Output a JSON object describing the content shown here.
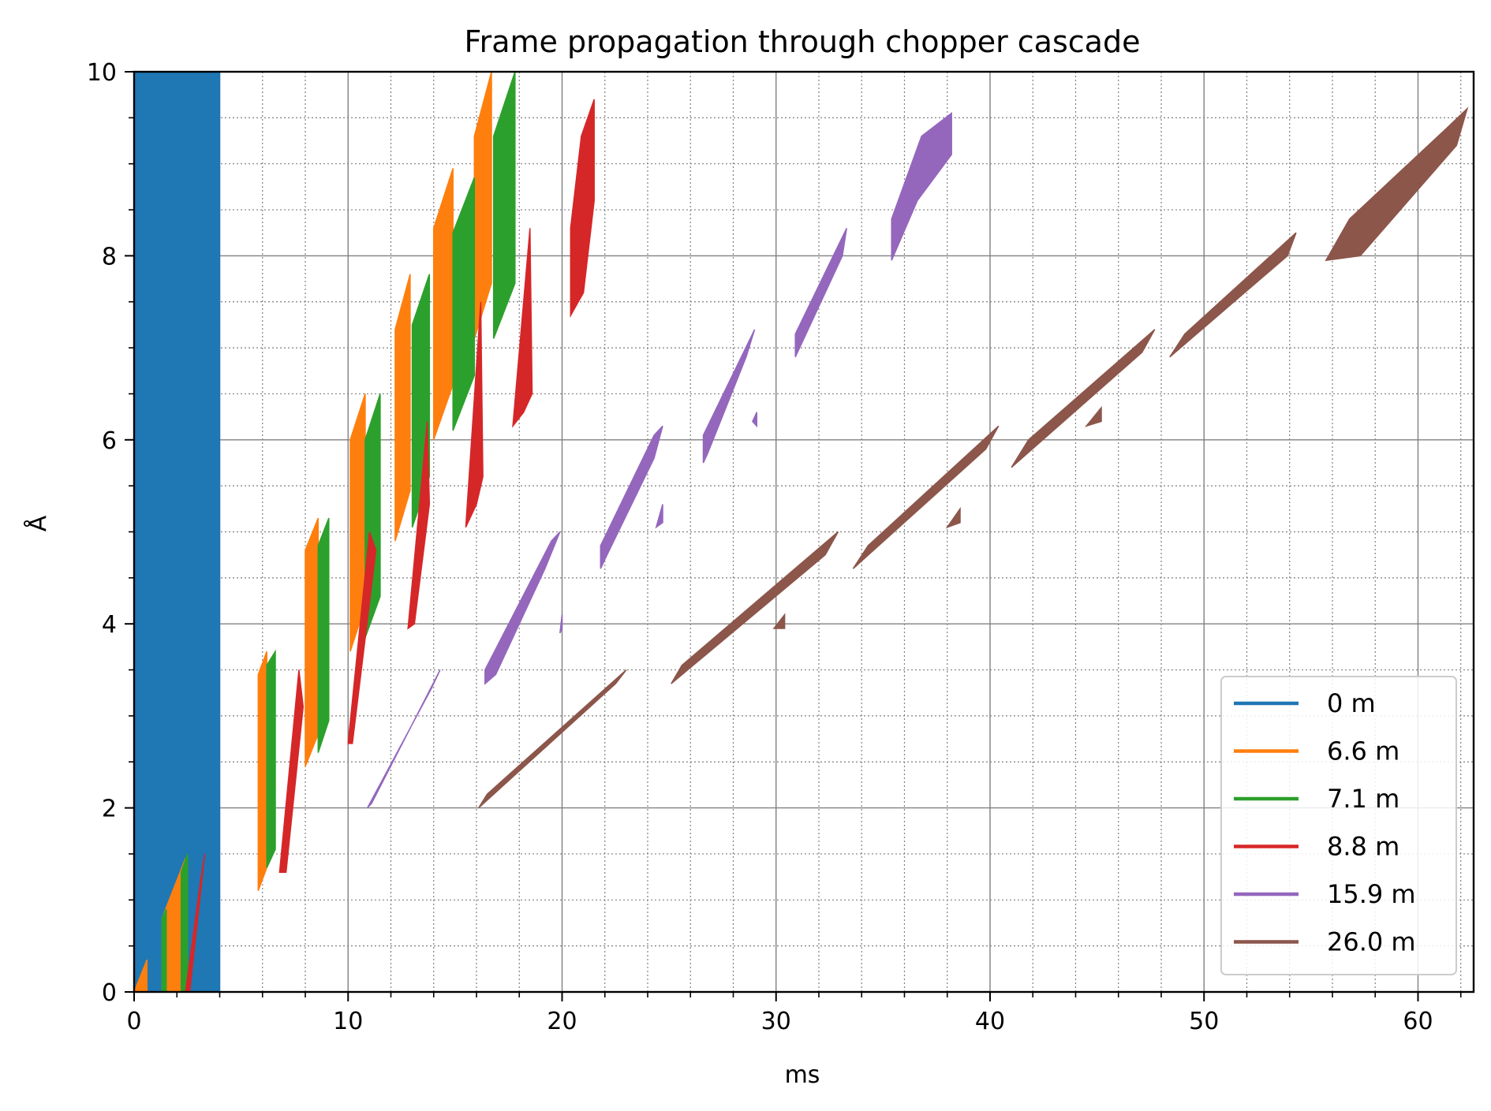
{
  "chart_data": {
    "type": "area",
    "title": "Frame propagation through chopper cascade",
    "xlabel": "ms",
    "ylabel": "Å",
    "xlim": [
      0,
      62.6
    ],
    "ylim": [
      0,
      10
    ],
    "xticks": [
      "0",
      "10",
      "20",
      "30",
      "40",
      "50",
      "60"
    ],
    "yticks": [
      "0",
      "2",
      "4",
      "6",
      "8",
      "10"
    ],
    "grid": {
      "major": true,
      "minor": true
    },
    "legend_position": "lower-right",
    "series": [
      {
        "name": "0 m",
        "color": "#1f77b4",
        "polygons": [
          [
            [
              0,
              0
            ],
            [
              4,
              0
            ],
            [
              4,
              10
            ],
            [
              0,
              10
            ]
          ]
        ]
      },
      {
        "name": "6.6 m",
        "color": "#ff7f0e",
        "polygons": [
          [
            [
              0,
              0
            ],
            [
              0.6,
              0.35
            ],
            [
              0.6,
              0
            ],
            [
              0,
              0
            ]
          ],
          [
            [
              1.3,
              0
            ],
            [
              1.3,
              0.8
            ],
            [
              2.4,
              1.45
            ],
            [
              2.4,
              0
            ]
          ],
          [
            [
              5.8,
              1.1
            ],
            [
              5.8,
              3.45
            ],
            [
              6.2,
              3.7
            ],
            [
              6.2,
              1.35
            ]
          ],
          [
            [
              8.0,
              2.45
            ],
            [
              8.0,
              4.8
            ],
            [
              8.6,
              5.15
            ],
            [
              8.6,
              2.8
            ]
          ],
          [
            [
              10.1,
              3.7
            ],
            [
              10.1,
              6.0
            ],
            [
              10.8,
              6.5
            ],
            [
              10.8,
              4.2
            ]
          ],
          [
            [
              12.2,
              4.9
            ],
            [
              12.2,
              7.2
            ],
            [
              12.9,
              7.8
            ],
            [
              12.9,
              5.45
            ]
          ],
          [
            [
              14.0,
              6.0
            ],
            [
              14.0,
              8.3
            ],
            [
              14.9,
              8.95
            ],
            [
              14.9,
              6.6
            ]
          ],
          [
            [
              15.9,
              7.1
            ],
            [
              15.9,
              9.3
            ],
            [
              16.7,
              10
            ],
            [
              16.7,
              7.7
            ]
          ]
        ]
      },
      {
        "name": "7.1 m",
        "color": "#2ca02c",
        "polygons": [
          [
            [
              1.3,
              0
            ],
            [
              1.3,
              0.8
            ],
            [
              1.5,
              0.9
            ],
            [
              1.5,
              0
            ]
          ],
          [
            [
              2.2,
              0
            ],
            [
              2.2,
              1.3
            ],
            [
              2.5,
              1.5
            ],
            [
              2.5,
              0
            ]
          ],
          [
            [
              6.2,
              1.35
            ],
            [
              6.2,
              3.55
            ],
            [
              6.6,
              3.7
            ],
            [
              6.6,
              1.55
            ]
          ],
          [
            [
              8.6,
              2.6
            ],
            [
              8.6,
              4.85
            ],
            [
              9.1,
              5.15
            ],
            [
              9.1,
              2.95
            ]
          ],
          [
            [
              10.8,
              3.85
            ],
            [
              10.8,
              6.0
            ],
            [
              11.5,
              6.5
            ],
            [
              11.5,
              4.3
            ]
          ],
          [
            [
              13.0,
              5.05
            ],
            [
              13.0,
              7.25
            ],
            [
              13.8,
              7.8
            ],
            [
              13.8,
              5.6
            ]
          ],
          [
            [
              14.9,
              6.1
            ],
            [
              14.9,
              8.25
            ],
            [
              15.9,
              8.85
            ],
            [
              15.9,
              6.7
            ]
          ],
          [
            [
              16.8,
              7.1
            ],
            [
              16.8,
              9.3
            ],
            [
              17.8,
              10
            ],
            [
              17.8,
              7.7
            ]
          ]
        ]
      },
      {
        "name": "8.8 m",
        "color": "#d62728",
        "polygons": [
          [
            [
              2.4,
              0
            ],
            [
              2.6,
              0
            ],
            [
              3.3,
              1.5
            ],
            [
              3.1,
              1.2
            ]
          ],
          [
            [
              6.8,
              1.3
            ],
            [
              7.7,
              3.5
            ],
            [
              7.9,
              3.1
            ],
            [
              7.1,
              1.3
            ]
          ],
          [
            [
              10.0,
              2.7
            ],
            [
              11.0,
              5.0
            ],
            [
              11.3,
              4.8
            ],
            [
              10.2,
              2.7
            ]
          ],
          [
            [
              12.8,
              3.95
            ],
            [
              13.7,
              6.2
            ],
            [
              13.8,
              5.3
            ],
            [
              13.1,
              4.0
            ]
          ],
          [
            [
              15.5,
              5.05
            ],
            [
              16.2,
              7.5
            ],
            [
              16.3,
              5.6
            ],
            [
              16.0,
              5.3
            ]
          ],
          [
            [
              17.7,
              6.15
            ],
            [
              18.5,
              8.3
            ],
            [
              18.6,
              6.5
            ],
            [
              18.2,
              6.3
            ]
          ],
          [
            [
              20.4,
              7.35
            ],
            [
              20.4,
              8.3
            ],
            [
              20.9,
              9.3
            ],
            [
              21.5,
              9.7
            ],
            [
              21.5,
              8.6
            ],
            [
              21.0,
              7.6
            ]
          ]
        ]
      },
      {
        "name": "15.9 m",
        "color": "#9467bd",
        "polygons": [
          [
            [
              10.9,
              2.0
            ],
            [
              11.1,
              2.05
            ],
            [
              14.3,
              3.5
            ],
            [
              13.9,
              3.3
            ]
          ],
          [
            [
              16.4,
              3.35
            ],
            [
              16.4,
              3.5
            ],
            [
              19.5,
              4.9
            ],
            [
              19.9,
              5.0
            ],
            [
              19.2,
              4.6
            ],
            [
              16.9,
              3.45
            ]
          ],
          [
            [
              19.9,
              3.9
            ],
            [
              20.0,
              4.1
            ],
            [
              20.0,
              3.95
            ]
          ],
          [
            [
              21.8,
              4.6
            ],
            [
              21.8,
              4.85
            ],
            [
              24.3,
              6.05
            ],
            [
              24.7,
              6.15
            ],
            [
              24.3,
              5.8
            ],
            [
              22.0,
              4.7
            ]
          ],
          [
            [
              24.4,
              5.05
            ],
            [
              24.7,
              5.3
            ],
            [
              24.7,
              5.1
            ]
          ],
          [
            [
              26.6,
              5.75
            ],
            [
              26.6,
              6.05
            ],
            [
              29.0,
              7.2
            ],
            [
              28.6,
              6.9
            ],
            [
              26.8,
              5.85
            ]
          ],
          [
            [
              28.9,
              6.2
            ],
            [
              29.1,
              6.3
            ],
            [
              29.1,
              6.15
            ]
          ],
          [
            [
              30.9,
              6.9
            ],
            [
              30.9,
              7.15
            ],
            [
              33.3,
              8.3
            ],
            [
              33.1,
              8.0
            ],
            [
              31.1,
              7.0
            ]
          ],
          [
            [
              35.4,
              7.95
            ],
            [
              35.4,
              8.4
            ],
            [
              36.8,
              9.3
            ],
            [
              38.2,
              9.55
            ],
            [
              38.2,
              9.1
            ],
            [
              36.6,
              8.6
            ]
          ]
        ]
      },
      {
        "name": "26.0 m",
        "color": "#8c564b",
        "polygons": [
          [
            [
              16.1,
              2.0
            ],
            [
              16.5,
              2.15
            ],
            [
              23.0,
              3.5
            ],
            [
              22.5,
              3.35
            ]
          ],
          [
            [
              25.1,
              3.35
            ],
            [
              25.6,
              3.55
            ],
            [
              32.9,
              5.0
            ],
            [
              32.3,
              4.75
            ]
          ],
          [
            [
              29.9,
              3.95
            ],
            [
              30.4,
              4.1
            ],
            [
              30.4,
              3.95
            ]
          ],
          [
            [
              33.6,
              4.6
            ],
            [
              34.3,
              4.85
            ],
            [
              40.4,
              6.15
            ],
            [
              39.8,
              5.9
            ]
          ],
          [
            [
              38.0,
              5.05
            ],
            [
              38.6,
              5.25
            ],
            [
              38.6,
              5.1
            ]
          ],
          [
            [
              41.0,
              5.7
            ],
            [
              41.8,
              6.0
            ],
            [
              47.7,
              7.2
            ],
            [
              47.1,
              6.95
            ]
          ],
          [
            [
              44.5,
              6.15
            ],
            [
              45.2,
              6.35
            ],
            [
              45.2,
              6.2
            ]
          ],
          [
            [
              48.4,
              6.9
            ],
            [
              49.1,
              7.15
            ],
            [
              54.3,
              8.25
            ],
            [
              53.9,
              8.0
            ]
          ],
          [
            [
              55.7,
              7.95
            ],
            [
              56.8,
              8.4
            ],
            [
              61.4,
              9.4
            ],
            [
              62.3,
              9.6
            ],
            [
              61.8,
              9.2
            ],
            [
              57.3,
              8.0
            ]
          ]
        ]
      }
    ]
  }
}
